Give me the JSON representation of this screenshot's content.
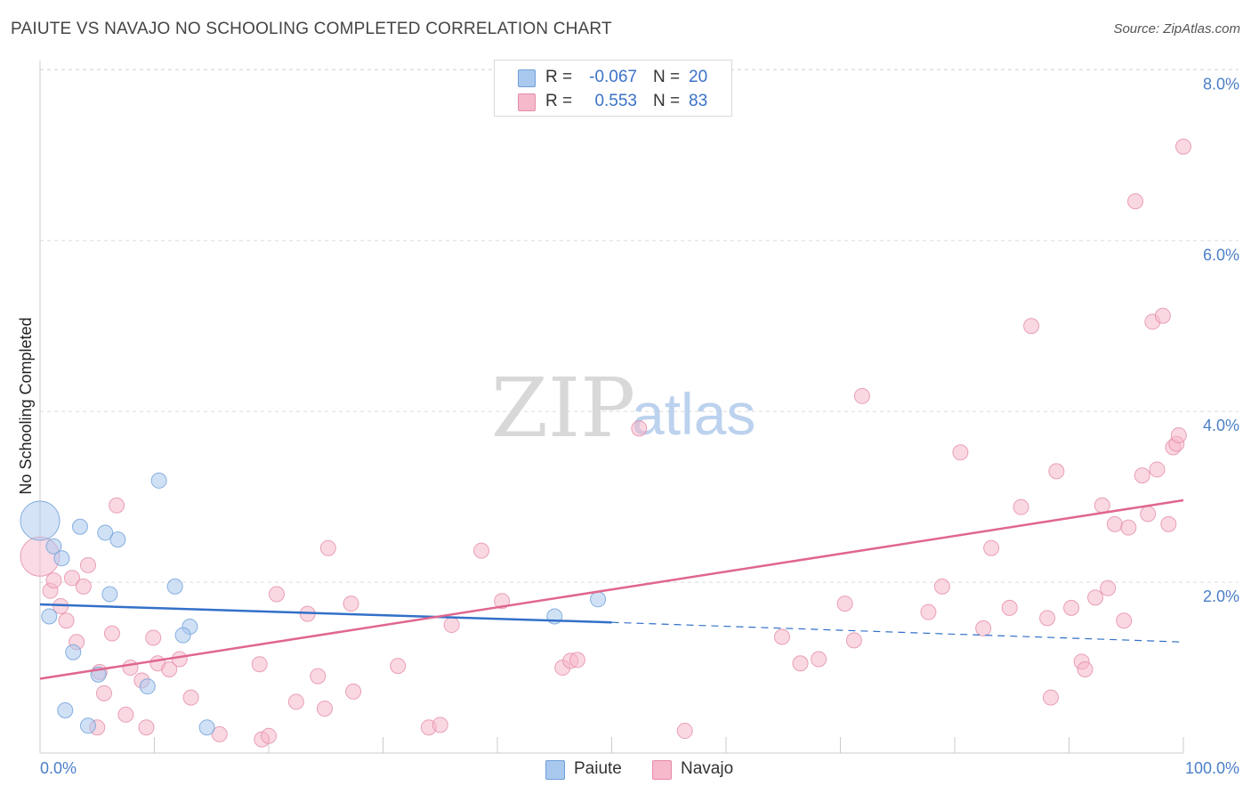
{
  "title": "PAIUTE VS NAVAJO NO SCHOOLING COMPLETED CORRELATION CHART",
  "source": "Source: ZipAtlas.com",
  "watermark": {
    "zip": "ZIP",
    "atlas": "atlas"
  },
  "colors": {
    "paiute_fill": "#a9c8ee",
    "paiute_stroke": "#6e9fd8",
    "paiute_line": "#3370c8",
    "navajo_fill": "#f6b8cb",
    "navajo_stroke": "#e48ca8",
    "navajo_line": "#e0668f",
    "tick_text": "#4a7fc8",
    "grid": "#dcdcdc"
  },
  "stats": [
    {
      "swatch": "paiute",
      "r_label": "R =",
      "r_value": "-0.067",
      "n_label": "N =",
      "n_value": "20"
    },
    {
      "swatch": "navajo",
      "r_label": "R =",
      "r_value": "0.553",
      "n_label": "N =",
      "n_value": "83"
    }
  ],
  "legend": [
    {
      "swatch": "paiute",
      "label": "Paiute"
    },
    {
      "swatch": "navajo",
      "label": "Navajo"
    }
  ],
  "chart_data": {
    "type": "scatter",
    "title": "PAIUTE VS NAVAJO NO SCHOOLING COMPLETED CORRELATION CHART",
    "xlabel": "",
    "ylabel": "No Schooling Completed",
    "xlim": [
      0,
      100
    ],
    "ylim": [
      0,
      8.4
    ],
    "x_tick_labels": [
      "0.0%",
      "100.0%"
    ],
    "y_ticks": [
      2.0,
      4.0,
      6.0,
      8.0
    ],
    "y_tick_labels": [
      "2.0%",
      "4.0%",
      "6.0%",
      "8.0%"
    ],
    "grid": true,
    "series": [
      {
        "name": "Paiute",
        "color": "#a9c8ee",
        "points": [
          {
            "x": 0.0,
            "y": 2.72,
            "big": true
          },
          {
            "x": 1.2,
            "y": 2.42
          },
          {
            "x": 1.9,
            "y": 2.28
          },
          {
            "x": 3.5,
            "y": 2.65
          },
          {
            "x": 5.7,
            "y": 2.58
          },
          {
            "x": 6.8,
            "y": 2.5
          },
          {
            "x": 10.4,
            "y": 3.19
          },
          {
            "x": 0.8,
            "y": 1.6
          },
          {
            "x": 6.1,
            "y": 1.86
          },
          {
            "x": 11.8,
            "y": 1.95
          },
          {
            "x": 13.1,
            "y": 1.48
          },
          {
            "x": 12.5,
            "y": 1.38
          },
          {
            "x": 2.9,
            "y": 1.18
          },
          {
            "x": 5.1,
            "y": 0.92
          },
          {
            "x": 9.4,
            "y": 0.78
          },
          {
            "x": 2.2,
            "y": 0.5
          },
          {
            "x": 4.2,
            "y": 0.32
          },
          {
            "x": 14.6,
            "y": 0.3
          },
          {
            "x": 45.0,
            "y": 1.6
          },
          {
            "x": 48.8,
            "y": 1.8
          }
        ]
      },
      {
        "name": "Navajo",
        "color": "#f6b8cb",
        "points": [
          {
            "x": 0.0,
            "y": 2.3,
            "big": true
          },
          {
            "x": 0.9,
            "y": 1.9
          },
          {
            "x": 1.2,
            "y": 2.02
          },
          {
            "x": 1.8,
            "y": 1.72
          },
          {
            "x": 2.3,
            "y": 1.55
          },
          {
            "x": 2.8,
            "y": 2.05
          },
          {
            "x": 3.2,
            "y": 1.3
          },
          {
            "x": 3.8,
            "y": 1.95
          },
          {
            "x": 4.2,
            "y": 2.2
          },
          {
            "x": 5.2,
            "y": 0.95
          },
          {
            "x": 5.6,
            "y": 0.7
          },
          {
            "x": 6.3,
            "y": 1.4
          },
          {
            "x": 6.7,
            "y": 2.9
          },
          {
            "x": 7.5,
            "y": 0.45
          },
          {
            "x": 7.9,
            "y": 1.0
          },
          {
            "x": 8.9,
            "y": 0.85
          },
          {
            "x": 9.3,
            "y": 0.3
          },
          {
            "x": 9.9,
            "y": 1.35
          },
          {
            "x": 10.3,
            "y": 1.05
          },
          {
            "x": 11.3,
            "y": 0.98
          },
          {
            "x": 12.2,
            "y": 1.1
          },
          {
            "x": 13.2,
            "y": 0.65
          },
          {
            "x": 15.7,
            "y": 0.22
          },
          {
            "x": 5.0,
            "y": 0.3
          },
          {
            "x": 19.2,
            "y": 1.04
          },
          {
            "x": 19.4,
            "y": 0.16
          },
          {
            "x": 20.0,
            "y": 0.2
          },
          {
            "x": 20.7,
            "y": 1.86
          },
          {
            "x": 22.4,
            "y": 0.6
          },
          {
            "x": 23.4,
            "y": 1.63
          },
          {
            "x": 24.3,
            "y": 0.9
          },
          {
            "x": 24.9,
            "y": 0.52
          },
          {
            "x": 25.2,
            "y": 2.4
          },
          {
            "x": 27.2,
            "y": 1.75
          },
          {
            "x": 27.4,
            "y": 0.72
          },
          {
            "x": 31.3,
            "y": 1.02
          },
          {
            "x": 34.0,
            "y": 0.3
          },
          {
            "x": 35.0,
            "y": 0.33
          },
          {
            "x": 36.0,
            "y": 1.5
          },
          {
            "x": 38.6,
            "y": 2.37
          },
          {
            "x": 40.4,
            "y": 1.78
          },
          {
            "x": 45.7,
            "y": 1.0
          },
          {
            "x": 46.4,
            "y": 1.08
          },
          {
            "x": 47.0,
            "y": 1.09
          },
          {
            "x": 52.4,
            "y": 3.8
          },
          {
            "x": 56.4,
            "y": 0.26
          },
          {
            "x": 64.9,
            "y": 1.36
          },
          {
            "x": 66.5,
            "y": 1.05
          },
          {
            "x": 68.1,
            "y": 1.1
          },
          {
            "x": 70.4,
            "y": 1.75
          },
          {
            "x": 71.2,
            "y": 1.32
          },
          {
            "x": 71.9,
            "y": 4.18
          },
          {
            "x": 77.7,
            "y": 1.65
          },
          {
            "x": 78.9,
            "y": 1.95
          },
          {
            "x": 80.5,
            "y": 3.52
          },
          {
            "x": 82.5,
            "y": 1.46
          },
          {
            "x": 83.2,
            "y": 2.4
          },
          {
            "x": 84.8,
            "y": 1.7
          },
          {
            "x": 85.8,
            "y": 2.88
          },
          {
            "x": 86.7,
            "y": 5.0
          },
          {
            "x": 88.1,
            "y": 1.58
          },
          {
            "x": 88.4,
            "y": 0.65
          },
          {
            "x": 88.9,
            "y": 3.3
          },
          {
            "x": 90.2,
            "y": 1.7
          },
          {
            "x": 91.1,
            "y": 1.07
          },
          {
            "x": 91.4,
            "y": 0.98
          },
          {
            "x": 92.3,
            "y": 1.82
          },
          {
            "x": 92.9,
            "y": 2.9
          },
          {
            "x": 93.4,
            "y": 1.93
          },
          {
            "x": 94.0,
            "y": 2.68
          },
          {
            "x": 94.8,
            "y": 1.55
          },
          {
            "x": 95.2,
            "y": 2.64
          },
          {
            "x": 95.8,
            "y": 6.46
          },
          {
            "x": 96.4,
            "y": 3.25
          },
          {
            "x": 96.9,
            "y": 2.8
          },
          {
            "x": 97.3,
            "y": 5.05
          },
          {
            "x": 97.7,
            "y": 3.32
          },
          {
            "x": 98.2,
            "y": 5.12
          },
          {
            "x": 98.7,
            "y": 2.68
          },
          {
            "x": 99.1,
            "y": 3.58
          },
          {
            "x": 99.4,
            "y": 3.62
          },
          {
            "x": 99.6,
            "y": 3.72
          },
          {
            "x": 100.0,
            "y": 7.1
          }
        ]
      }
    ],
    "trend_lines": [
      {
        "series": "Paiute",
        "x_start": 0,
        "y_start": 1.74,
        "x_end": 50,
        "y_end": 1.53,
        "dashed_to_x": 100,
        "dashed_to_y": 1.3
      },
      {
        "series": "Navajo",
        "x_start": 0,
        "y_start": 0.87,
        "x_end": 100,
        "y_end": 2.96
      }
    ]
  }
}
